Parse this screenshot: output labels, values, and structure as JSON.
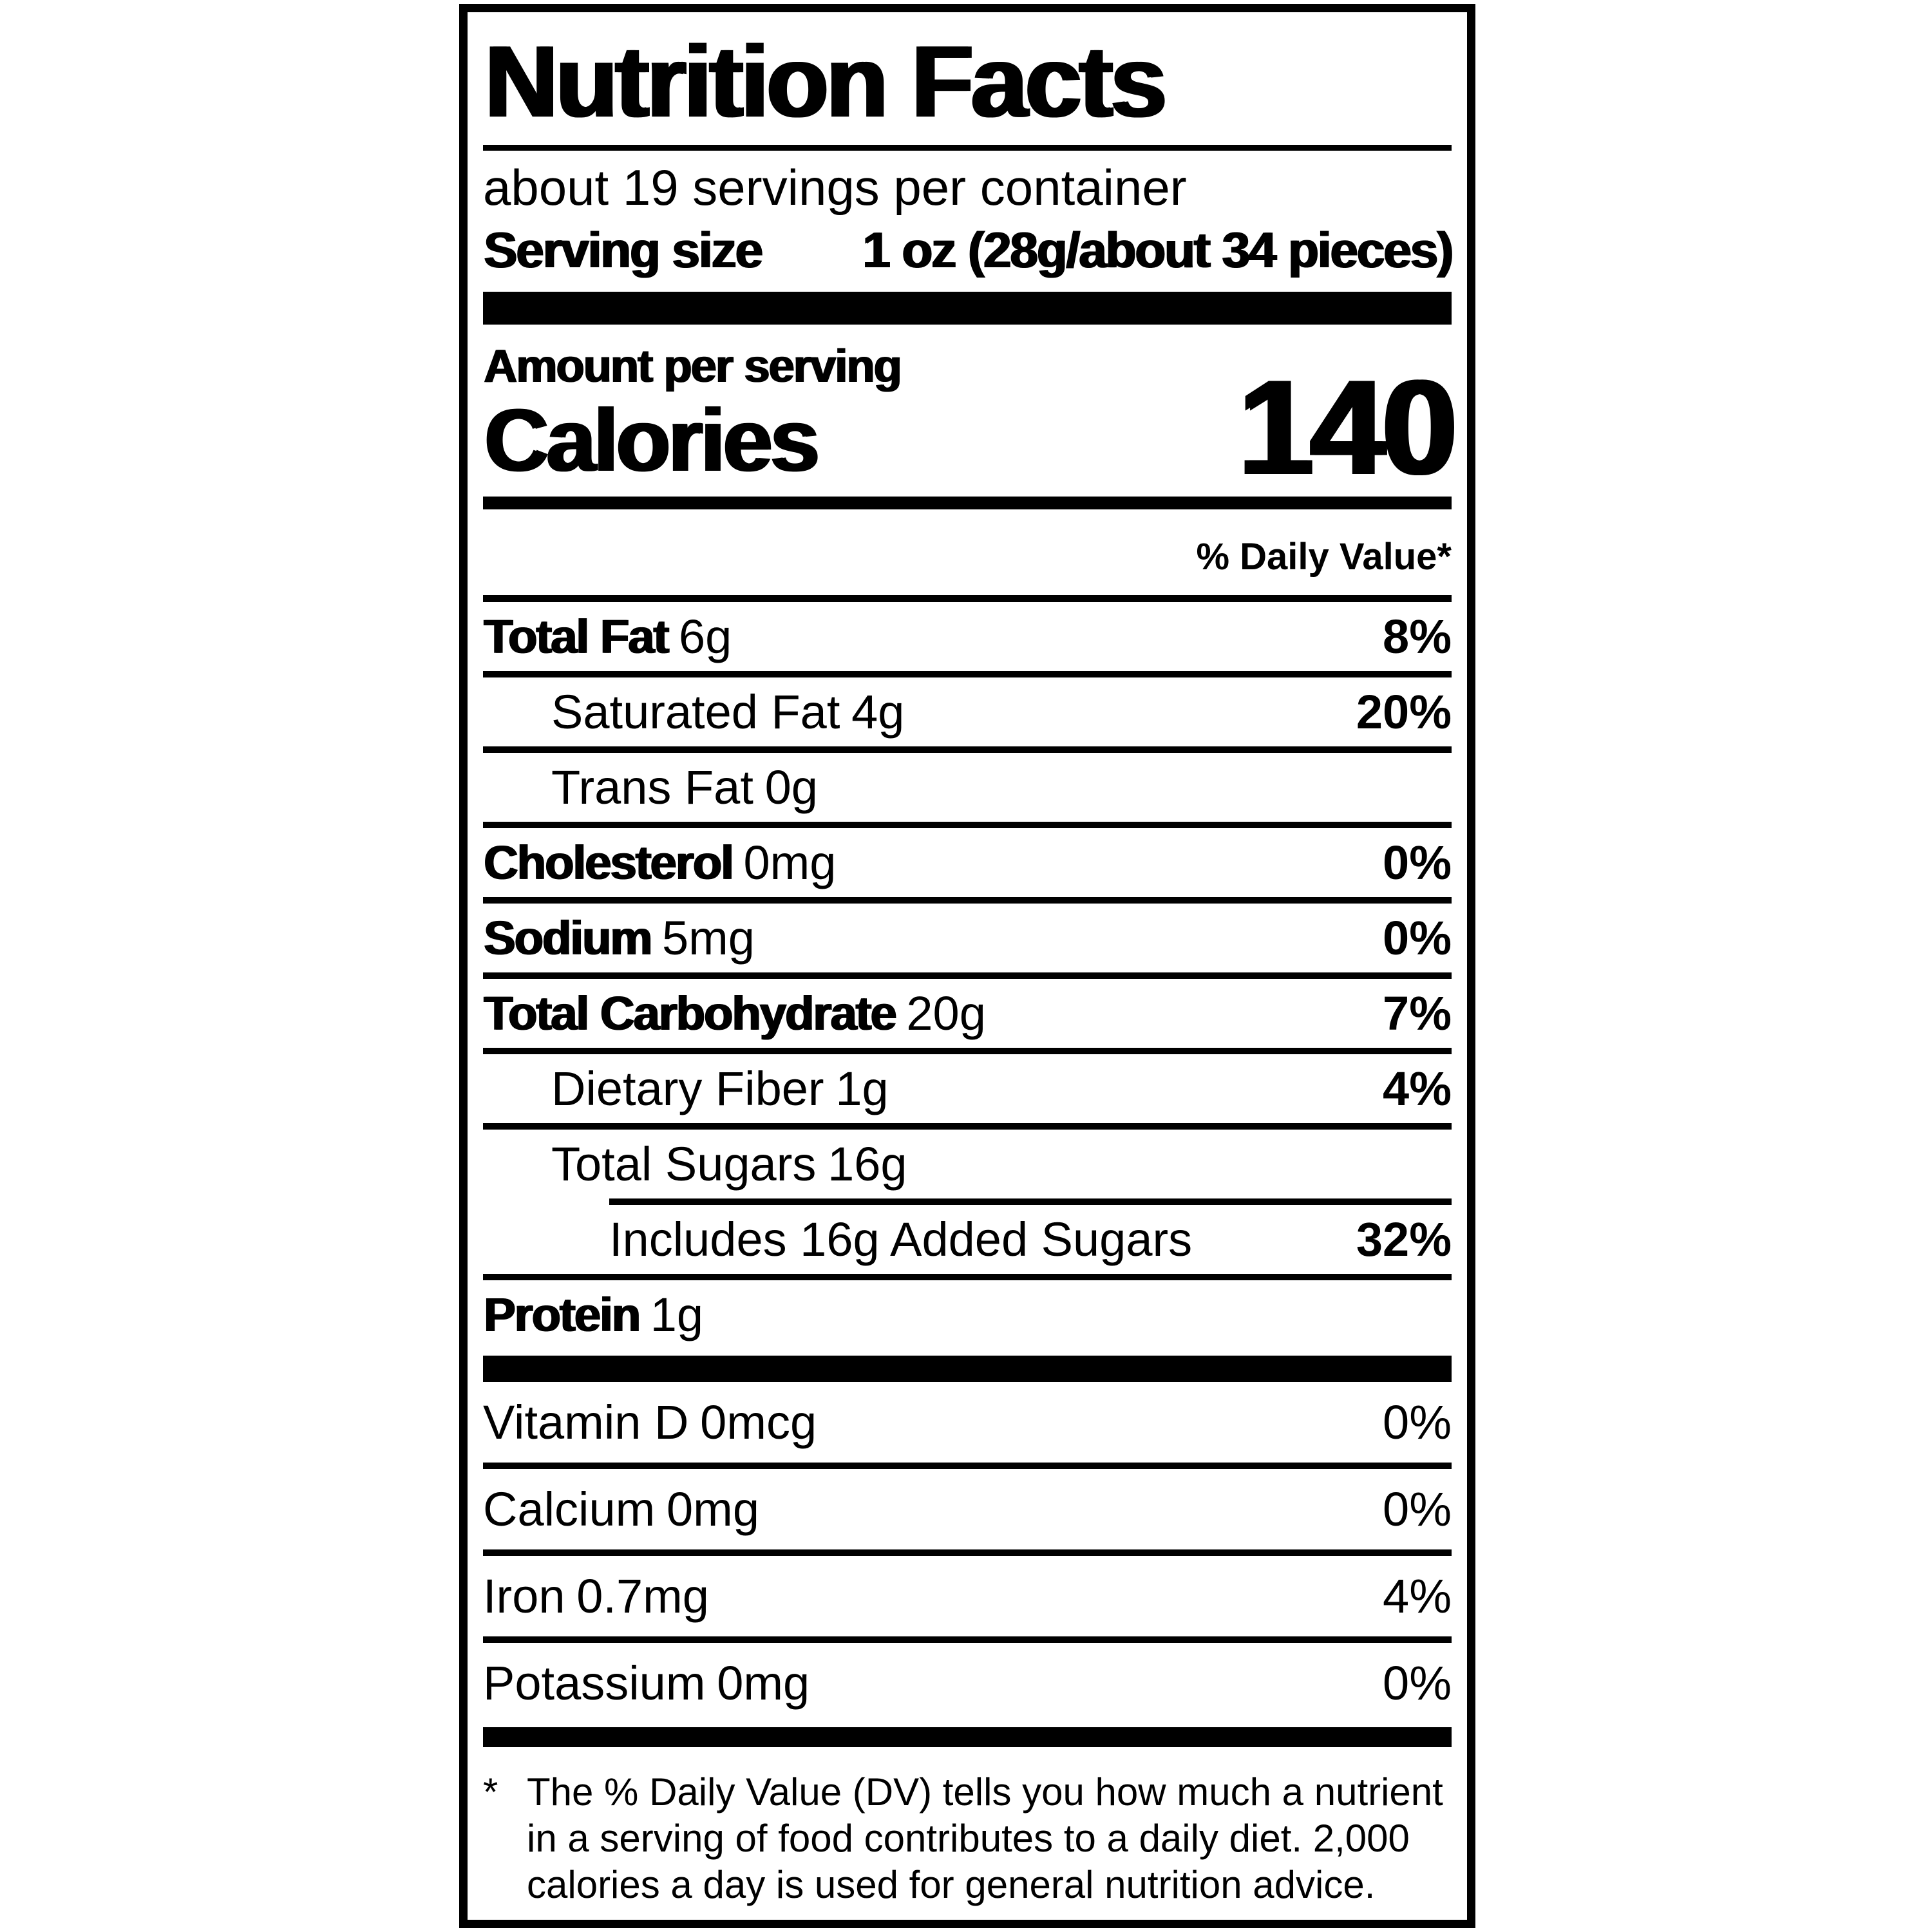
{
  "label": {
    "title": "Nutrition Facts",
    "servings_per_container": "about 19 servings per container",
    "serving_size_label": "Serving size",
    "serving_size_value": "1 oz (28g/about 34 pieces)",
    "amount_per_serving": "Amount per serving",
    "calories_label": "Calories",
    "calories_value": "140",
    "daily_value_header": "% Daily Value*",
    "nutrients": [
      {
        "name": "Total Fat",
        "amount": "6g",
        "dv": "8%"
      },
      {
        "name": "Saturated Fat",
        "amount": "4g",
        "dv": "20%"
      },
      {
        "name": "Trans Fat",
        "amount": "0g",
        "dv": ""
      },
      {
        "name": "Cholesterol",
        "amount": "0mg",
        "dv": "0%"
      },
      {
        "name": "Sodium",
        "amount": "5mg",
        "dv": "0%"
      },
      {
        "name": "Total Carbohydrate",
        "amount": "20g",
        "dv": "7%"
      },
      {
        "name": "Dietary Fiber",
        "amount": "1g",
        "dv": "4%"
      },
      {
        "name": "Total Sugars",
        "amount": "16g",
        "dv": ""
      },
      {
        "name": "Includes 16g Added Sugars",
        "amount": "",
        "dv": "32%"
      },
      {
        "name": "Protein",
        "amount": "1g",
        "dv": ""
      }
    ],
    "vitamins": [
      {
        "name": "Vitamin D",
        "amount": "0mcg",
        "dv": "0%"
      },
      {
        "name": "Calcium",
        "amount": "0mg",
        "dv": "0%"
      },
      {
        "name": "Iron",
        "amount": "0.7mg",
        "dv": "4%"
      },
      {
        "name": "Potassium",
        "amount": "0mg",
        "dv": "0%"
      }
    ],
    "footnote_marker": "*",
    "footnote_text": "The % Daily Value (DV) tells you how much a nutrient in a serving of food contributes to a daily diet. 2,000 calories a day is used for general nutrition advice."
  },
  "colors": {
    "ink": "#000000",
    "background": "#ffffff"
  }
}
